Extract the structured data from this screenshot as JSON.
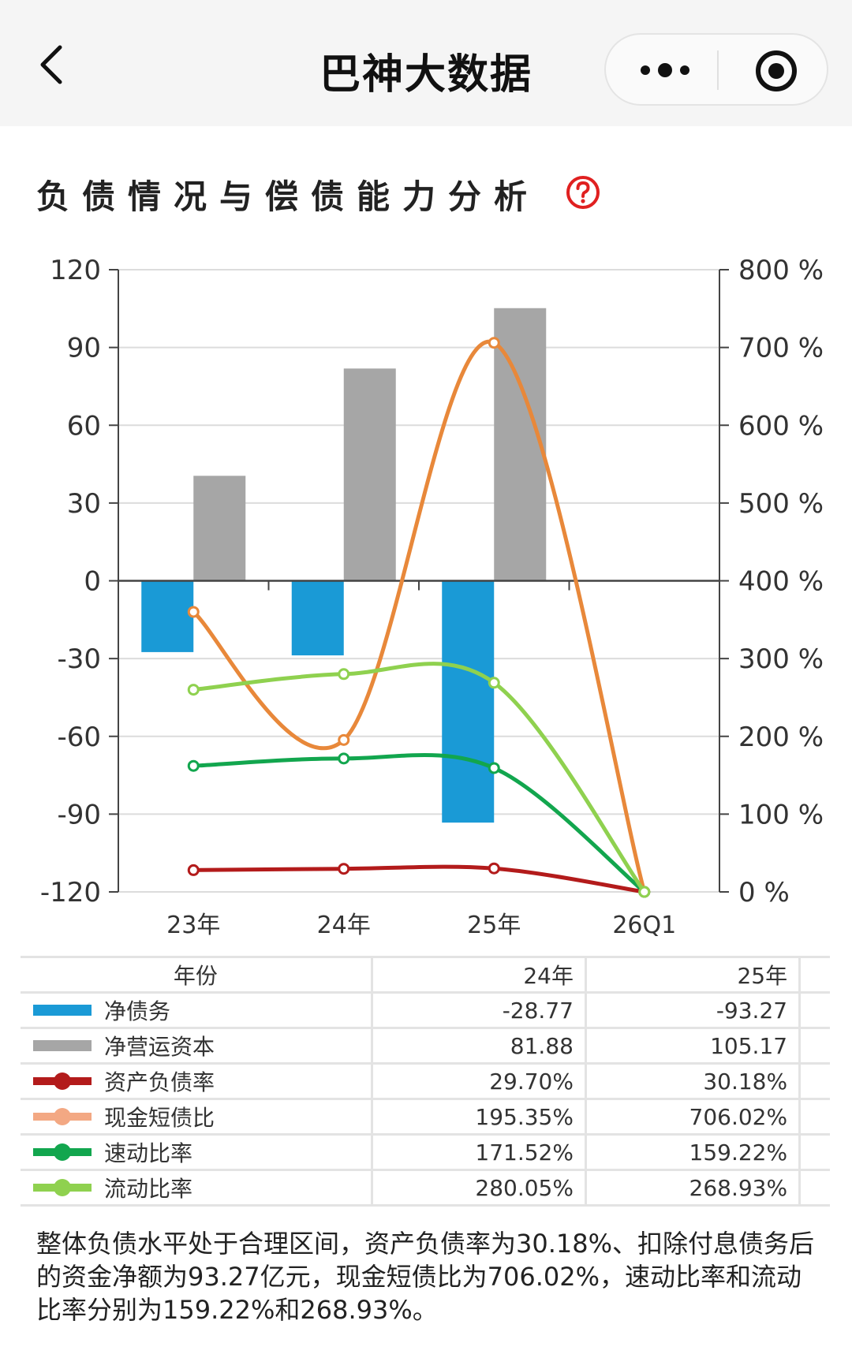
{
  "nav": {
    "title": "巴神大数据",
    "back_icon": "chevron-left-icon",
    "more_icon": "more-dots-icon",
    "target_icon": "target-icon"
  },
  "section": {
    "title": "负债情况与偿债能力分析",
    "help_icon": "question-circle-icon",
    "help_color": "#e02020"
  },
  "chart_data": {
    "type": "bar",
    "categories": [
      "23年",
      "24年",
      "25年",
      "26Q1"
    ],
    "y_left": {
      "min": -120,
      "max": 120,
      "ticks": [
        "120",
        "90",
        "60",
        "30",
        "0",
        "-30",
        "-60",
        "-90",
        "-120"
      ]
    },
    "y_right": {
      "min": 0,
      "max": 800,
      "ticks": [
        "800 %",
        "700 %",
        "600 %",
        "500 %",
        "400 %",
        "300 %",
        "200 %",
        "100 %",
        "0 %"
      ]
    },
    "bar_series": [
      {
        "name": "净债务",
        "color": "#1a9ad6",
        "values": [
          -27.5,
          -28.77,
          -93.27,
          null
        ]
      },
      {
        "name": "净营运资本",
        "color": "#a6a6a6",
        "values": [
          40.5,
          81.88,
          105.17,
          null
        ]
      }
    ],
    "line_series": [
      {
        "name": "资产负债率",
        "color": "#b31b1b",
        "values": [
          28.0,
          29.7,
          30.18,
          0
        ]
      },
      {
        "name": "现金短债比",
        "color": "#e8883a",
        "values": [
          360,
          195.35,
          706.02,
          0
        ]
      },
      {
        "name": "速动比率",
        "color": "#12a64e",
        "values": [
          162,
          171.52,
          159.22,
          0
        ]
      },
      {
        "name": "流动比率",
        "color": "#8fd14f",
        "values": [
          260,
          280.05,
          268.93,
          0
        ]
      }
    ]
  },
  "table": {
    "header": {
      "label": "年份",
      "col1": "24年",
      "col2": "25年"
    },
    "rows": [
      {
        "name": "净债务",
        "col1": "-28.77",
        "col2": "-93.27",
        "marker": "bar",
        "color": "#1a9ad6"
      },
      {
        "name": "净营运资本",
        "col1": "81.88",
        "col2": "105.17",
        "marker": "bar",
        "color": "#a6a6a6"
      },
      {
        "name": "资产负债率",
        "col1": "29.70%",
        "col2": "30.18%",
        "marker": "line",
        "color": "#b31b1b"
      },
      {
        "name": "现金短债比",
        "col1": "195.35%",
        "col2": "706.02%",
        "marker": "line",
        "color": "#f3a883"
      },
      {
        "name": "速动比率",
        "col1": "171.52%",
        "col2": "159.22%",
        "marker": "line",
        "color": "#12a64e"
      },
      {
        "name": "流动比率",
        "col1": "280.05%",
        "col2": "268.93%",
        "marker": "line",
        "color": "#8fd14f"
      }
    ]
  },
  "summary": "整体负债水平处于合理区间，资产负债率为30.18%、扣除付息债务后的资金净额为93.27亿元，现金短债比为706.02%，速动比率和流动比率分别为159.22%和268.93%。"
}
